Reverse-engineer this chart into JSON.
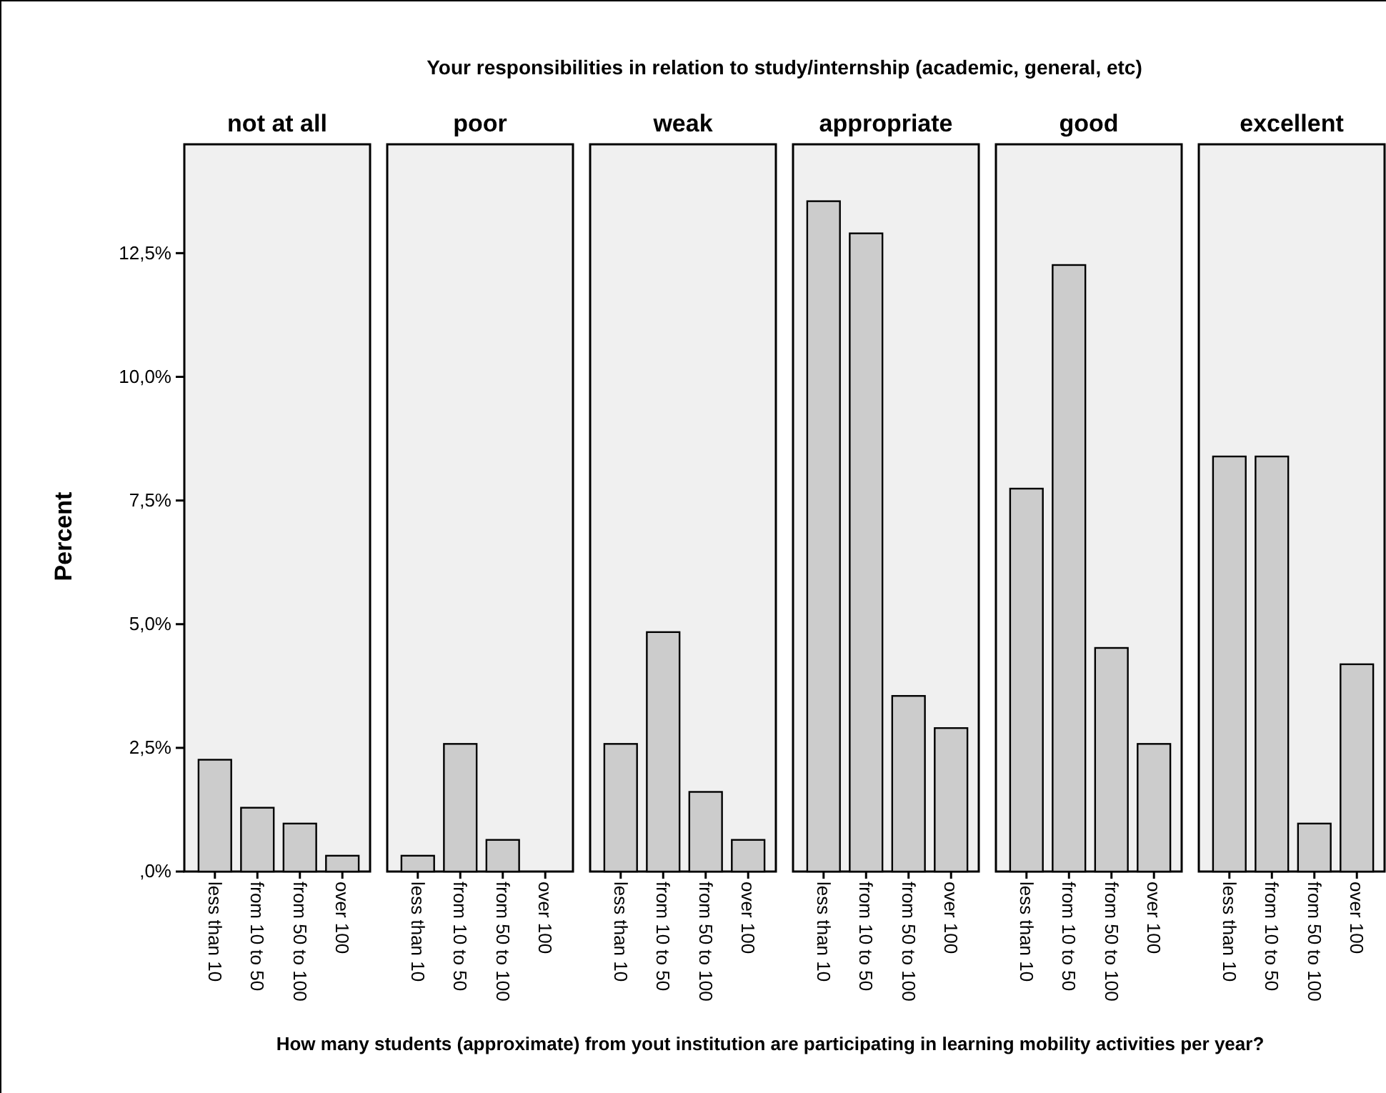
{
  "chart_data": [
    {
      "type": "bar",
      "title": "not at all",
      "ylabel": "Percent",
      "xlabel": "How many students (approximate) from yout institution are participating in learning mobility activities per year?",
      "annotations": [
        "Your responsibilities in relation to study/internship (academic, general, etc)"
      ],
      "categories": [
        "less than 10",
        "from 10 to 50",
        "from 50 to 100",
        "over 100"
      ],
      "values": [
        2.26,
        1.29,
        0.97,
        0.32
      ],
      "color": "#cccccc",
      "ylim": [
        0,
        14.7
      ],
      "yticks": [
        {
          "value": 0,
          "label": ",0%"
        },
        {
          "value": 2.5,
          "label": "2,5%"
        },
        {
          "value": 5,
          "label": "5,0%"
        },
        {
          "value": 7.5,
          "label": "7,5%"
        },
        {
          "value": 10,
          "label": "10,0%"
        },
        {
          "value": 12.5,
          "label": "12,5%"
        }
      ]
    },
    {
      "type": "bar",
      "title": "poor",
      "tick_labels": "x",
      "categories": [
        "less than 10",
        "from 10 to 50",
        "from 50 to 100",
        "over 100"
      ],
      "values": [
        0.32,
        2.58,
        0.64,
        0
      ],
      "color": "#cccccc",
      "ylim": [
        0,
        14.7
      ]
    },
    {
      "type": "bar",
      "title": "weak",
      "tick_labels": "x",
      "categories": [
        "less than 10",
        "from 10 to 50",
        "from 50 to 100",
        "over 100"
      ],
      "values": [
        2.58,
        4.84,
        1.61,
        0.64
      ],
      "color": "#cccccc",
      "ylim": [
        0,
        14.7
      ]
    },
    {
      "type": "bar",
      "title": "appropriate",
      "tick_labels": "x",
      "categories": [
        "less than 10",
        "from 10 to 50",
        "from 50 to 100",
        "over 100"
      ],
      "values": [
        13.55,
        12.9,
        3.55,
        2.9
      ],
      "color": "#cccccc",
      "ylim": [
        0,
        14.7
      ]
    },
    {
      "type": "bar",
      "title": "good",
      "tick_labels": "x",
      "categories": [
        "less than 10",
        "from 10 to 50",
        "from 50 to 100",
        "over 100"
      ],
      "values": [
        7.74,
        12.26,
        4.52,
        2.58
      ],
      "color": "#cccccc",
      "ylim": [
        0,
        14.7
      ]
    },
    {
      "type": "bar",
      "title": "excellent",
      "tick_labels": "x",
      "categories": [
        "less than 10",
        "from 10 to 50",
        "from 50 to 100",
        "over 100"
      ],
      "values": [
        8.39,
        8.39,
        0.97,
        4.19
      ],
      "color": "#cccccc",
      "ylim": [
        0,
        14.7
      ]
    }
  ]
}
